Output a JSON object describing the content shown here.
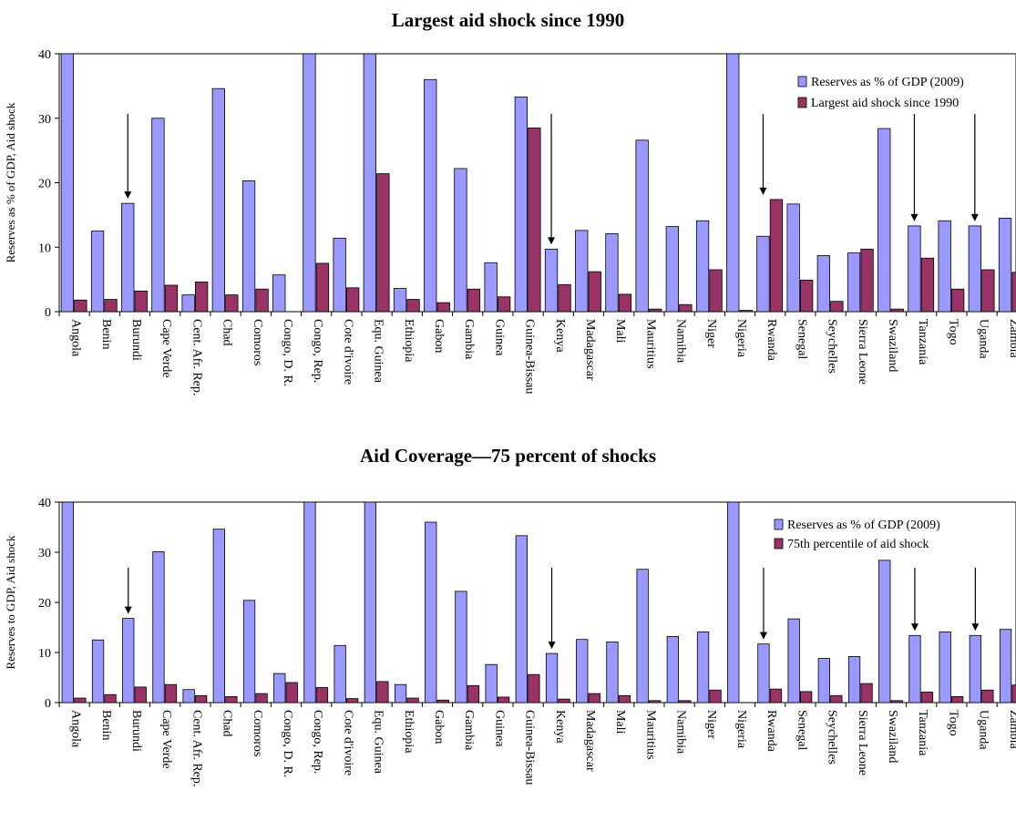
{
  "chart_data": [
    {
      "type": "bar",
      "title": "Largest aid shock since 1990",
      "ylabel": "Reserves as % of GDP, Aid shock",
      "xlabel": "",
      "ylim": [
        0,
        40
      ],
      "yticks": [
        "0",
        "10",
        "20",
        "30",
        "40"
      ],
      "grid": false,
      "legend": "top-right",
      "categories": [
        "Angola",
        "Benin",
        "Burundi",
        "Cape Verde",
        "Cent. Afr. Rep.",
        "Chad",
        "Comoros",
        "Congo, D. R.",
        "Congo, Rep.",
        "Cote d'ivoire",
        "Equ. Guinea",
        "Ethiopia",
        "Gabon",
        "Gambia",
        "Guinea",
        "Guinea-Bissau",
        "Kenya",
        "Madagascar",
        "Mali",
        "Mauritius",
        "Namibia",
        "Niger",
        "Nigeria",
        "Rwanda",
        "Senegal",
        "Seychelles",
        "Sierra Leone",
        "Swaziland",
        "Tanzania",
        "Togo",
        "Uganda",
        "Zambia"
      ],
      "series": [
        {
          "name": "Reserves as  % of  GDP (2009)",
          "color": "#9999ff",
          "values": [
            40,
            12.5,
            16.8,
            30,
            2.6,
            34.6,
            20.3,
            5.7,
            40,
            11.4,
            40,
            3.6,
            36,
            22.2,
            7.6,
            33.3,
            9.7,
            12.6,
            12.1,
            26.6,
            13.2,
            14.1,
            40,
            11.7,
            16.7,
            8.7,
            9.1,
            28.4,
            13.3,
            14.1,
            13.3,
            14.5
          ]
        },
        {
          "name": "Largest aid shock since 1990",
          "color": "#993366",
          "values": [
            1.8,
            1.9,
            3.2,
            4.1,
            4.6,
            2.6,
            3.5,
            0,
            7.5,
            3.7,
            21.4,
            1.9,
            1.4,
            3.5,
            2.3,
            28.5,
            4.2,
            6.2,
            2.7,
            0.4,
            1.1,
            6.5,
            0.2,
            17.4,
            4.9,
            1.6,
            9.7,
            0.4,
            8.3,
            3.5,
            6.5,
            6.1
          ]
        }
      ],
      "arrows": [
        "Burundi",
        "Kenya",
        "Rwanda",
        "Tanzania",
        "Uganda"
      ]
    },
    {
      "type": "bar",
      "title": "Aid Coverage—75 percent of shocks",
      "ylabel": "Reserves to GDP, Aid shock",
      "xlabel": "",
      "ylim": [
        0,
        40
      ],
      "yticks": [
        "0",
        "10",
        "20",
        "30",
        "40"
      ],
      "grid": false,
      "legend": "top-right",
      "categories": [
        "Angola",
        "Benin",
        "Burundi",
        "Cape Verde",
        "Cent. Afr. Rep.",
        "Chad",
        "Comoros",
        "Congo, D. R.",
        "Congo, Rep.",
        "Cote d'ivoire",
        "Equ. Guinea",
        "Ethiopia",
        "Gabon",
        "Gambia",
        "Guinea",
        "Guinea-Bissau",
        "Kenya",
        "Madagascar",
        "Mali",
        "Mauritius",
        "Namibia",
        "Niger",
        "Nigeria",
        "Rwanda",
        "Senegal",
        "Seychelles",
        "Sierra Leone",
        "Swaziland",
        "Tanzania",
        "Togo",
        "Uganda",
        "Zambia"
      ],
      "series": [
        {
          "name": "Reserves as  % of  GDP (2009)",
          "color": "#9999ff",
          "values": [
            40,
            12.5,
            16.8,
            30.1,
            2.6,
            34.6,
            20.4,
            5.8,
            40,
            11.4,
            40,
            3.6,
            36,
            22.2,
            7.6,
            33.3,
            9.8,
            12.6,
            12.1,
            26.6,
            13.2,
            14.1,
            40,
            11.7,
            16.7,
            8.8,
            9.2,
            28.4,
            13.4,
            14.1,
            13.4,
            14.6
          ]
        },
        {
          "name": "75th percentile of aid shock",
          "color": "#993366",
          "values": [
            0.9,
            1.6,
            3.1,
            3.6,
            1.4,
            1.2,
            1.8,
            4,
            3,
            0.8,
            4.2,
            0.9,
            0.5,
            3.4,
            1.1,
            5.6,
            0.7,
            1.8,
            1.4,
            0.4,
            0.4,
            2.5,
            0,
            2.7,
            2.2,
            1.4,
            3.8,
            0.4,
            2.1,
            1.2,
            2.5,
            3.5
          ]
        }
      ],
      "arrows": [
        "Burundi",
        "Kenya",
        "Rwanda",
        "Tanzania",
        "Uganda"
      ]
    }
  ]
}
